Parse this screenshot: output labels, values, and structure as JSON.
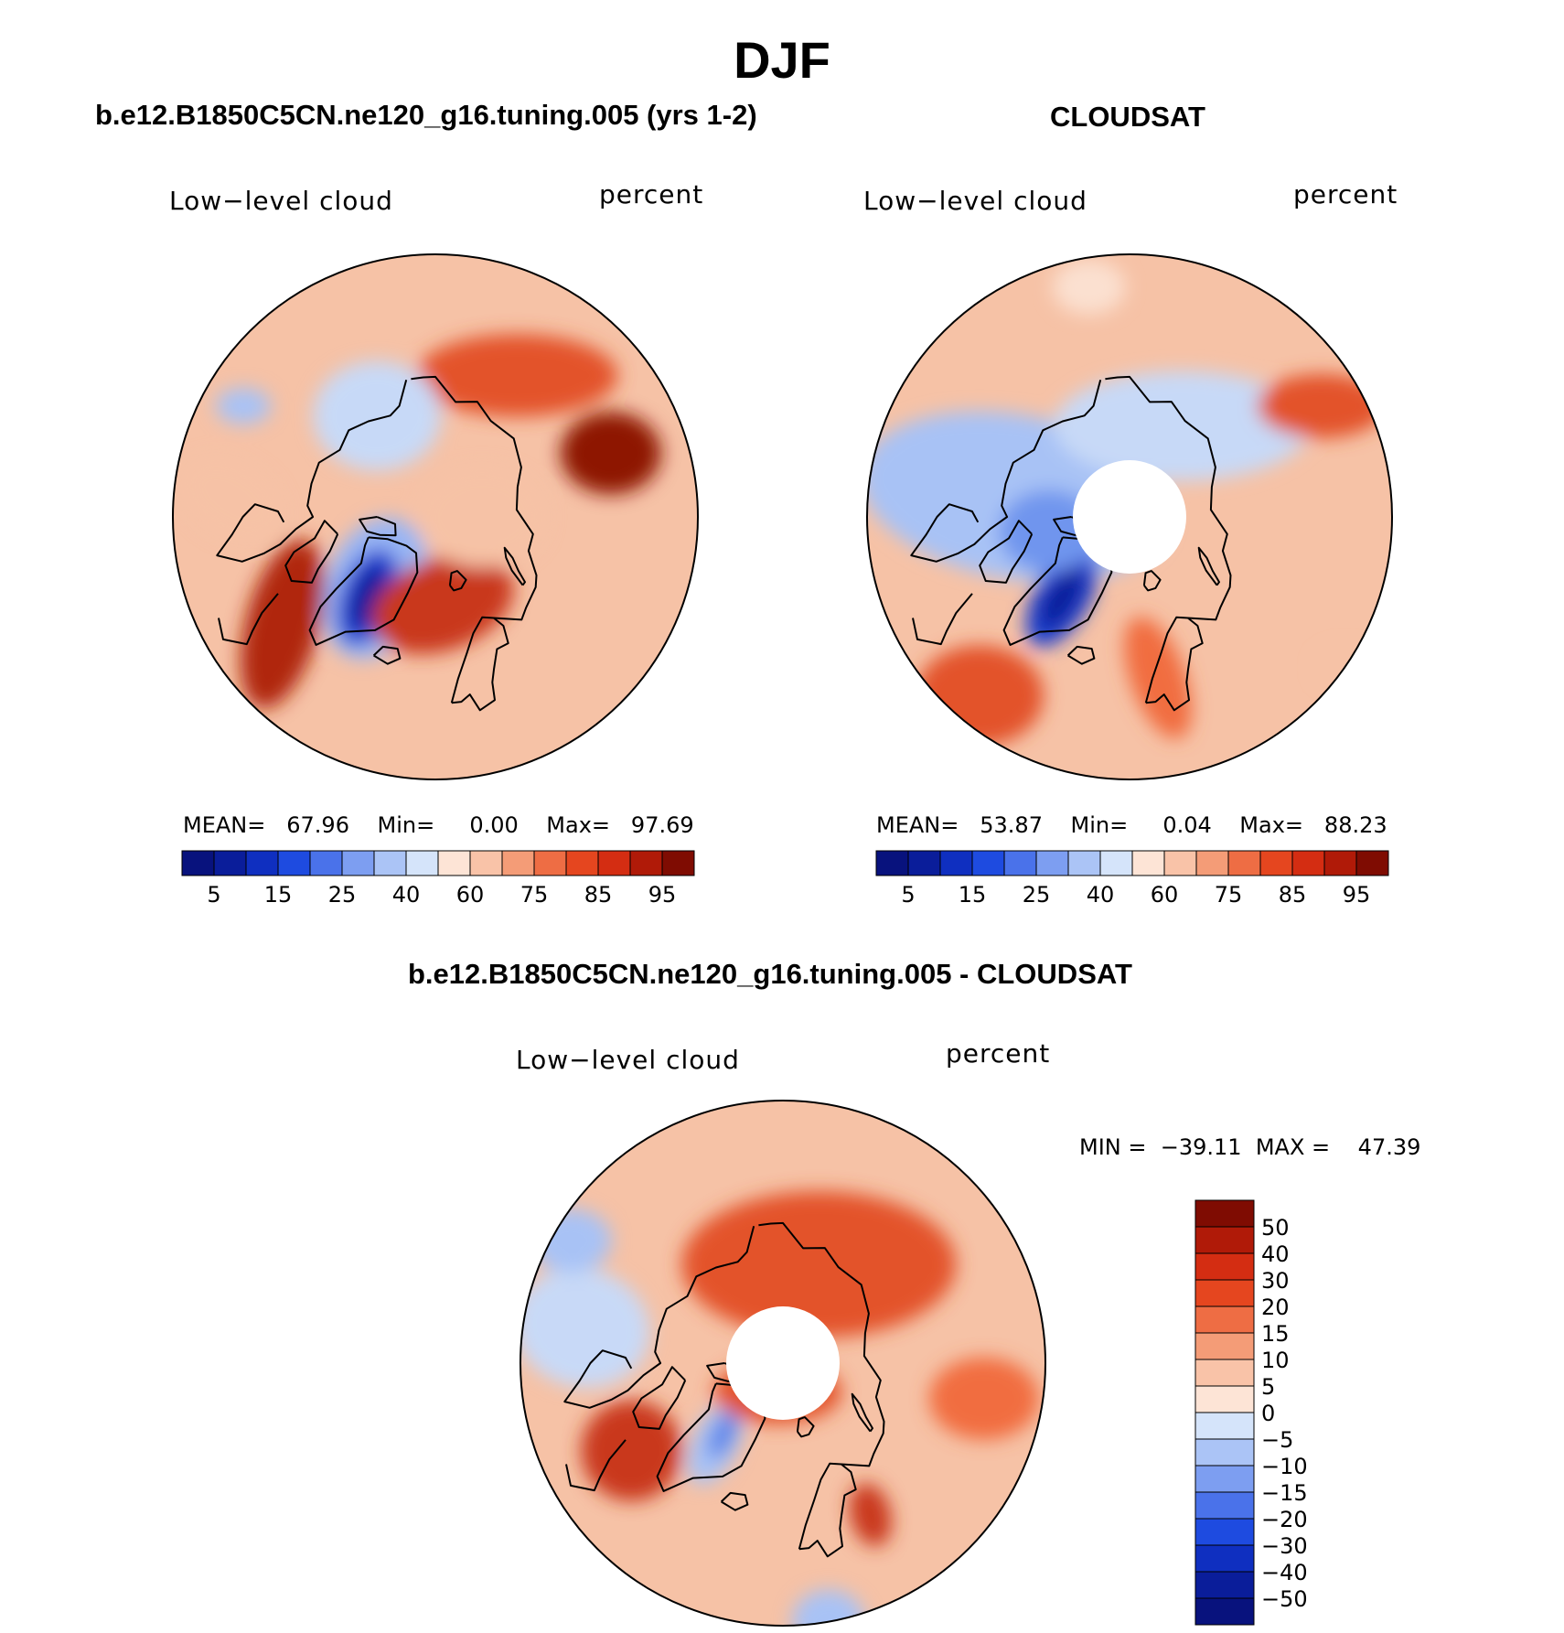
{
  "title": "DJF",
  "panels": [
    {
      "title": "b.e12.B1850C5CN.ne120_g16.tuning.005 (yrs 1-2)",
      "variable": "Low−level cloud",
      "units": "percent",
      "stats": {
        "mean_label": "MEAN=",
        "mean": "67.96",
        "min_label": "Min=",
        "min": "0.00",
        "max_label": "Max=",
        "max": "97.69"
      },
      "pole_hole": false,
      "blobs": [
        {
          "lon": -40,
          "lat": 74,
          "rx": 55,
          "ry": 80,
          "rot": 20,
          "color": "#98b5f5"
        },
        {
          "lon": -40,
          "lat": 72,
          "rx": 30,
          "ry": 55,
          "rot": 20,
          "color": "#1e3fd0"
        },
        {
          "lon": -40,
          "lat": 72,
          "rx": 16,
          "ry": 35,
          "rot": 20,
          "color": "#0a1d9a"
        },
        {
          "lon": 5,
          "lat": 75,
          "rx": 80,
          "ry": 50,
          "rot": -20,
          "color": "#c9381a"
        },
        {
          "lon": -55,
          "lat": 58,
          "rx": 40,
          "ry": 95,
          "rot": 15,
          "color": "#b0280f"
        },
        {
          "lon": 110,
          "lat": 58,
          "rx": 55,
          "ry": 45,
          "rot": 0,
          "color": "#8e1505"
        },
        {
          "lon": 150,
          "lat": 62,
          "rx": 110,
          "ry": 45,
          "rot": 0,
          "color": "#e3532a"
        },
        {
          "lon": -150,
          "lat": 70,
          "rx": 70,
          "ry": 60,
          "rot": 0,
          "color": "#c7d9f7"
        },
        {
          "lon": -95,
          "lat": 55,
          "rx": 60,
          "ry": 40,
          "rot": 30,
          "color": "#f6c2a6"
        },
        {
          "lon": 90,
          "lat": 82,
          "rx": 70,
          "ry": 55,
          "rot": 0,
          "color": "#f6c2a6"
        },
        {
          "lon": -120,
          "lat": 52,
          "rx": 30,
          "ry": 20,
          "rot": 0,
          "color": "#a8c2f5"
        }
      ]
    },
    {
      "title": "CLOUDSAT",
      "variable": "Low−level cloud",
      "units": "percent",
      "stats": {
        "mean_label": "MEAN=",
        "mean": "53.87",
        "min_label": "Min=",
        "min": "0.04",
        "max_label": "Max=",
        "max": "88.23"
      },
      "pole_hole": true,
      "blobs": [
        {
          "lon": -100,
          "lat": 70,
          "rx": 170,
          "ry": 90,
          "rot": 10,
          "color": "#a8c2f5"
        },
        {
          "lon": 150,
          "lat": 72,
          "rx": 140,
          "ry": 60,
          "rot": 0,
          "color": "#c7d9f7"
        },
        {
          "lon": -40,
          "lat": 72,
          "rx": 30,
          "ry": 60,
          "rot": 30,
          "color": "#1e3fd0"
        },
        {
          "lon": -40,
          "lat": 72,
          "rx": 16,
          "ry": 38,
          "rot": 30,
          "color": "#0a1d9a"
        },
        {
          "lon": -40,
          "lat": 50,
          "rx": 70,
          "ry": 55,
          "rot": 0,
          "color": "#e3532a"
        },
        {
          "lon": 10,
          "lat": 62,
          "rx": 30,
          "ry": 70,
          "rot": -20,
          "color": "#f16d3f"
        },
        {
          "lon": 120,
          "lat": 52,
          "rx": 70,
          "ry": 35,
          "rot": 0,
          "color": "#e3532a"
        },
        {
          "lon": -170,
          "lat": 50,
          "rx": 40,
          "ry": 30,
          "rot": 0,
          "color": "#fbe0d0"
        },
        {
          "lon": -80,
          "lat": 76,
          "rx": 55,
          "ry": 45,
          "rot": 0,
          "color": "#6f95ee"
        },
        {
          "lon": 55,
          "lat": 45,
          "rx": 30,
          "ry": 20,
          "rot": 0,
          "color": "#f6c2a6"
        }
      ]
    },
    {
      "title": "b.e12.B1850C5CN.ne120_g16.tuning.005 - CLOUDSAT",
      "variable": "Low−level cloud",
      "units": "percent",
      "stats": {
        "min_label": "MIN =",
        "min": "−39.11",
        "max_label": "MAX =",
        "max": "47.39"
      },
      "pole_hole": true,
      "blobs": [
        {
          "lon": 160,
          "lat": 72,
          "rx": 150,
          "ry": 80,
          "rot": 0,
          "color": "#e3532a"
        },
        {
          "lon": -100,
          "lat": 55,
          "rx": 75,
          "ry": 65,
          "rot": 15,
          "color": "#c8d9f7"
        },
        {
          "lon": -120,
          "lat": 48,
          "rx": 45,
          "ry": 35,
          "rot": 0,
          "color": "#a8c2f5"
        },
        {
          "lon": -60,
          "lat": 60,
          "rx": 55,
          "ry": 55,
          "rot": 0,
          "color": "#c9381a"
        },
        {
          "lon": -40,
          "lat": 72,
          "rx": 25,
          "ry": 48,
          "rot": 25,
          "color": "#a8c2f5"
        },
        {
          "lon": -40,
          "lat": 74,
          "rx": 12,
          "ry": 28,
          "rot": 25,
          "color": "#5c82e8"
        },
        {
          "lon": 10,
          "lat": 45,
          "rx": 40,
          "ry": 35,
          "rot": 0,
          "color": "#a8c2f5"
        },
        {
          "lon": 30,
          "lat": 60,
          "rx": 22,
          "ry": 35,
          "rot": -15,
          "color": "#c9381a"
        },
        {
          "lon": 80,
          "lat": 55,
          "rx": 60,
          "ry": 45,
          "rot": 0,
          "color": "#f16d3f"
        },
        {
          "lon": -10,
          "lat": 85,
          "rx": 70,
          "ry": 35,
          "rot": 0,
          "color": "#e3532a"
        }
      ]
    }
  ],
  "colorbar_abs": {
    "colors": [
      "#08127d",
      "#0a1d9a",
      "#0f2fc0",
      "#1e4be0",
      "#4a72ea",
      "#7d9ef1",
      "#abc4f6",
      "#d5e4fa",
      "#fde4d6",
      "#f9c3a8",
      "#f49c77",
      "#ee6d44",
      "#e5461f",
      "#d42d12",
      "#b01a08",
      "#7f0c02"
    ],
    "ticks": [
      "5",
      "15",
      "25",
      "40",
      "60",
      "75",
      "85",
      "95"
    ]
  },
  "colorbar_diff": {
    "colors": [
      "#7f0c02",
      "#b01a08",
      "#d42d12",
      "#e5461f",
      "#ee6d44",
      "#f49c77",
      "#f9c3a8",
      "#fde4d6",
      "#d5e4fa",
      "#abc4f6",
      "#7d9ef1",
      "#4a72ea",
      "#1e4be0",
      "#0f2fc0",
      "#0a1d9a",
      "#08127d"
    ],
    "ticks": [
      "50",
      "40",
      "30",
      "20",
      "15",
      "10",
      "5",
      "0",
      "−5",
      "−10",
      "−15",
      "−20",
      "−30",
      "−40",
      "−50"
    ]
  }
}
